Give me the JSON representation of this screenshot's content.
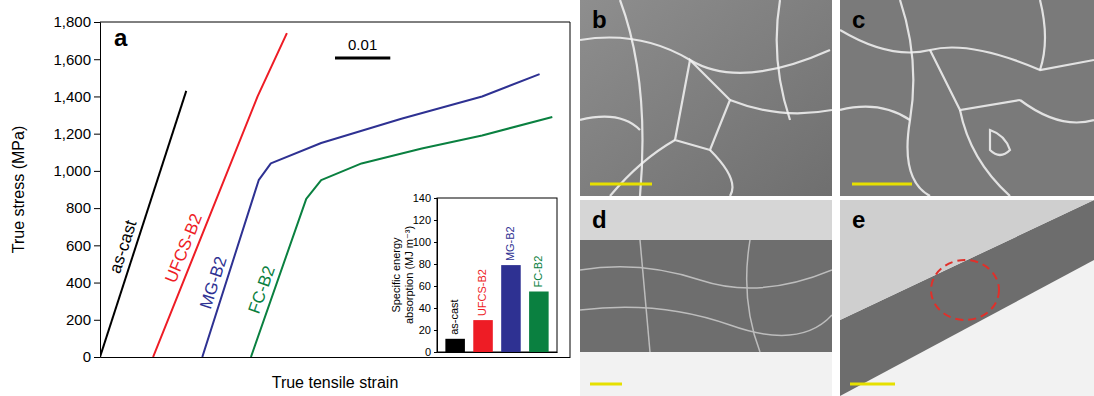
{
  "chart_data": [
    {
      "type": "line",
      "x_label": "True tensile strain",
      "y_label": "True stress (MPa)",
      "xlim": [
        0,
        0.085
      ],
      "ylim": [
        0,
        1800
      ],
      "yticks": [
        0,
        200,
        400,
        600,
        800,
        {
          "value": 1000,
          "label": "1,000"
        },
        {
          "value": 1200,
          "label": "1,200"
        },
        {
          "value": 1400,
          "label": "1,400"
        },
        {
          "value": 1600,
          "label": "1,600"
        },
        {
          "value": 1800,
          "label": "1,800"
        }
      ],
      "tick_labels": "y",
      "annotations": [
        {
          "text": "a"
        },
        {
          "text": "0.01",
          "length": 0.01
        }
      ],
      "series": [
        {
          "name": "as-cast",
          "color": "#000000",
          "x": [
            0,
            0.0156
          ],
          "values": [
            0,
            1430
          ]
        },
        {
          "name": "UFCS-B2",
          "color": "#ee1c25",
          "x": [
            0.0096,
            0.0285,
            0.0338
          ],
          "values": [
            0,
            1400,
            1740
          ]
        },
        {
          "name": "MG-B2",
          "color": "#2e3192",
          "x": [
            0.0185,
            0.0287,
            0.0309,
            0.04,
            0.0545,
            0.0691,
            0.0795
          ],
          "values": [
            0,
            950,
            1040,
            1150,
            1280,
            1400,
            1520
          ]
        },
        {
          "name": "FC-B2",
          "color": "#0a8040",
          "x": [
            0.0273,
            0.0373,
            0.04,
            0.0473,
            0.0582,
            0.0691,
            0.0818
          ],
          "values": [
            0,
            850,
            950,
            1040,
            1120,
            1190,
            1290
          ]
        }
      ]
    },
    {
      "type": "bar",
      "y_label": "Specific energy absorption (MJ m⁻³)",
      "categories": [
        "as-cast",
        "UFCS-B2",
        "MG-B2",
        "FC-B2"
      ],
      "values": [
        12,
        29,
        79,
        55
      ],
      "colors": [
        "#000000",
        "#ee1c25",
        "#2e3192",
        "#0a8040"
      ],
      "ylim": [
        0,
        140
      ],
      "yticks": [
        0,
        20,
        40,
        60,
        80,
        100,
        120,
        140
      ],
      "tick_labels": "y"
    }
  ],
  "panels": [
    {
      "label": "b"
    },
    {
      "label": "c"
    },
    {
      "label": "d"
    },
    {
      "label": "e"
    }
  ]
}
